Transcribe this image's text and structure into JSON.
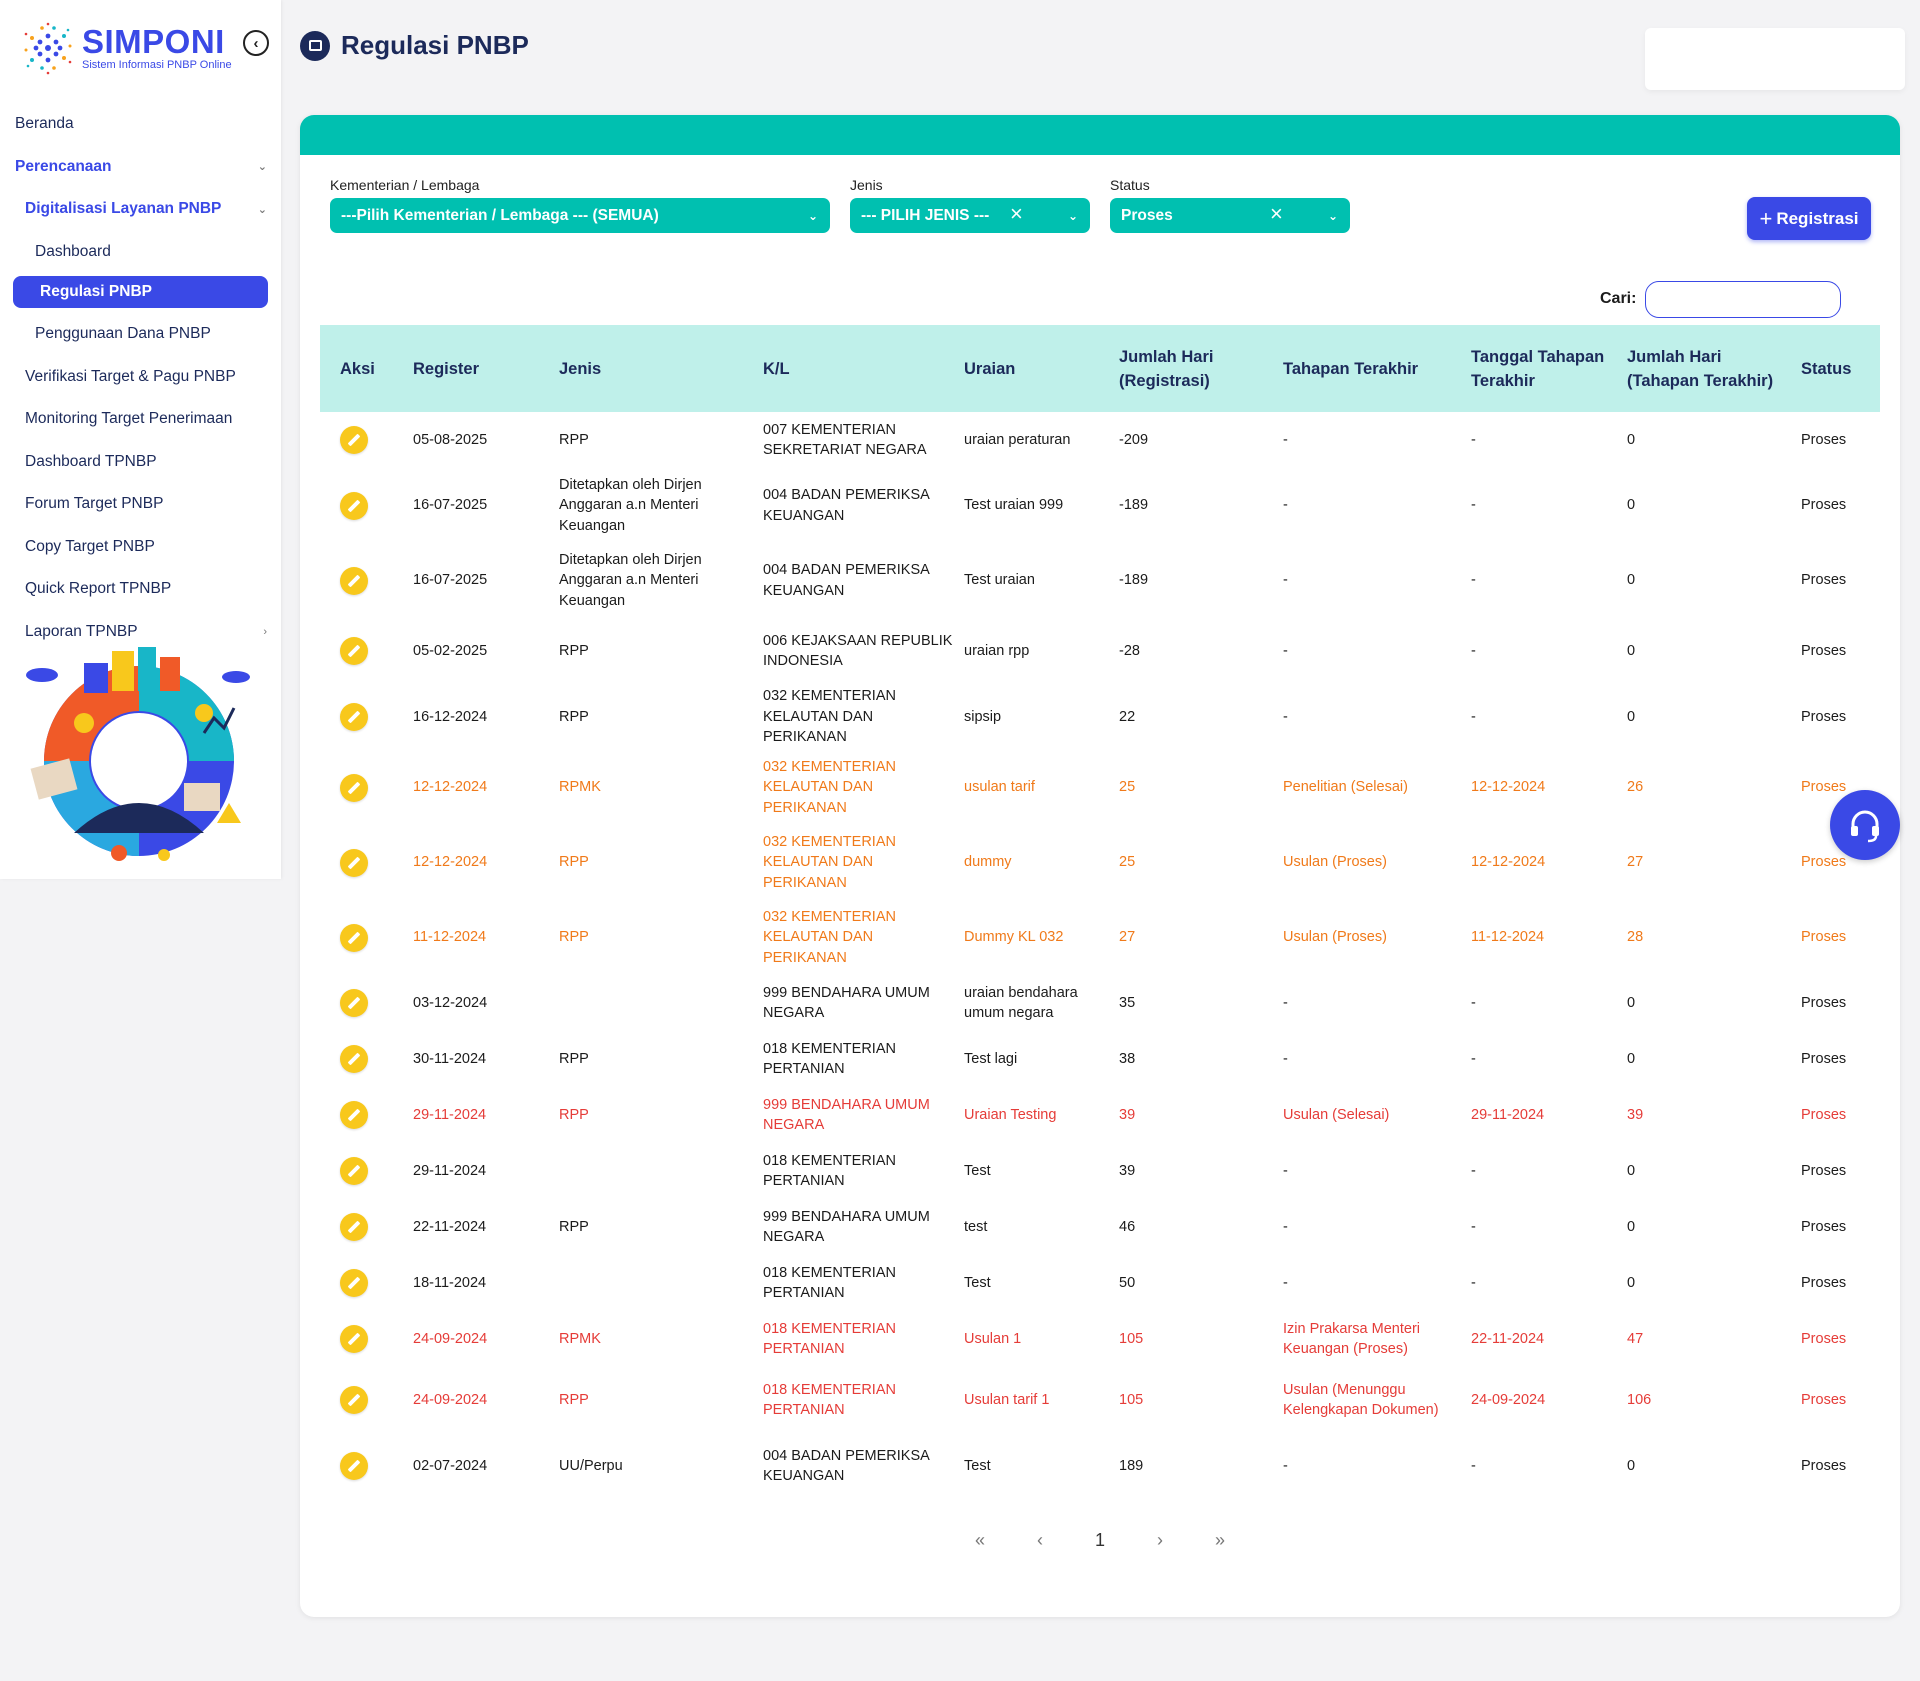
{
  "app": {
    "logo_title": "SIMPONI",
    "logo_subtitle": "Sistem Informasi PNBP Online"
  },
  "sidebar": {
    "items": [
      {
        "label": "Beranda"
      },
      {
        "label": "Perencanaan"
      },
      {
        "label": "Digitalisasi Layanan PNBP"
      },
      {
        "label": "Dashboard"
      },
      {
        "label": "Regulasi PNBP"
      },
      {
        "label": "Penggunaan Dana PNBP"
      },
      {
        "label": "Verifikasi Target & Pagu PNBP"
      },
      {
        "label": "Monitoring Target Penerimaan"
      },
      {
        "label": "Dashboard TPNBP"
      },
      {
        "label": "Forum Target PNBP"
      },
      {
        "label": "Copy Target PNBP"
      },
      {
        "label": "Quick Report TPNBP"
      },
      {
        "label": "Laporan TPNBP"
      }
    ]
  },
  "page": {
    "title": "Regulasi PNBP"
  },
  "filters": {
    "kl_label": "Kementerian / Lembaga",
    "kl_value": "---Pilih Kementerian / Lembaga --- (SEMUA)",
    "jenis_label": "Jenis",
    "jenis_value": "--- PILIH JENIS ---",
    "status_label": "Status",
    "status_value": "Proses",
    "register_button": "Registrasi"
  },
  "search": {
    "label": "Cari:",
    "value": ""
  },
  "table": {
    "headers": [
      "Aksi",
      "Register",
      "Jenis",
      "K/L",
      "Uraian",
      "Jumlah Hari (Registrasi)",
      "Tahapan Terakhir",
      "Tanggal Tahapan Terakhir",
      "Jumlah Hari (Tahapan Terakhir)",
      "Status"
    ],
    "rows": [
      {
        "register": "05-08-2025",
        "jenis": "RPP",
        "kl": "007 KEMENTERIAN SEKRETARIAT NEGARA",
        "uraian": "uraian peraturan",
        "hari_reg": "-209",
        "tahapan": "-",
        "tgl_tahapan": "-",
        "hari_tahapan": "0",
        "status": "Proses"
      },
      {
        "register": "16-07-2025",
        "jenis": "Ditetapkan oleh Dirjen Anggaran a.n Menteri Keuangan",
        "kl": "004 BADAN PEMERIKSA KEUANGAN",
        "uraian": "Test uraian 999",
        "hari_reg": "-189",
        "tahapan": "-",
        "tgl_tahapan": "-",
        "hari_tahapan": "0",
        "status": "Proses"
      },
      {
        "register": "16-07-2025",
        "jenis": "Ditetapkan oleh Dirjen Anggaran a.n Menteri Keuangan",
        "kl": "004 BADAN PEMERIKSA KEUANGAN",
        "uraian": "Test uraian",
        "hari_reg": "-189",
        "tahapan": "-",
        "tgl_tahapan": "-",
        "hari_tahapan": "0",
        "status": "Proses"
      },
      {
        "register": "05-02-2025",
        "jenis": "RPP",
        "kl": "006 KEJAKSAAN REPUBLIK INDONESIA",
        "uraian": "uraian rpp",
        "hari_reg": "-28",
        "tahapan": "-",
        "tgl_tahapan": "-",
        "hari_tahapan": "0",
        "status": "Proses"
      },
      {
        "register": "16-12-2024",
        "jenis": "RPP",
        "kl": "032 KEMENTERIAN KELAUTAN DAN PERIKANAN",
        "uraian": "sipsip",
        "hari_reg": "22",
        "tahapan": "-",
        "tgl_tahapan": "-",
        "hari_tahapan": "0",
        "status": "Proses"
      },
      {
        "register": "12-12-2024",
        "jenis": "RPMK",
        "kl": "032 KEMENTERIAN KELAUTAN DAN PERIKANAN",
        "uraian": "usulan tarif",
        "hari_reg": "25",
        "tahapan": "Penelitian (Selesai)",
        "tgl_tahapan": "12-12-2024",
        "hari_tahapan": "26",
        "status": "Proses",
        "color": "orange"
      },
      {
        "register": "12-12-2024",
        "jenis": "RPP",
        "kl": "032 KEMENTERIAN KELAUTAN DAN PERIKANAN",
        "uraian": "dummy",
        "hari_reg": "25",
        "tahapan": "Usulan (Proses)",
        "tgl_tahapan": "12-12-2024",
        "hari_tahapan": "27",
        "status": "Proses",
        "color": "orange"
      },
      {
        "register": "11-12-2024",
        "jenis": "RPP",
        "kl": "032 KEMENTERIAN KELAUTAN DAN PERIKANAN",
        "uraian": "Dummy KL 032",
        "hari_reg": "27",
        "tahapan": "Usulan (Proses)",
        "tgl_tahapan": "11-12-2024",
        "hari_tahapan": "28",
        "status": "Proses",
        "color": "orange"
      },
      {
        "register": "03-12-2024",
        "jenis": "",
        "kl": "999 BENDAHARA UMUM NEGARA",
        "uraian": "uraian bendahara umum negara",
        "hari_reg": "35",
        "tahapan": "-",
        "tgl_tahapan": "-",
        "hari_tahapan": "0",
        "status": "Proses"
      },
      {
        "register": "30-11-2024",
        "jenis": "RPP",
        "kl": "018 KEMENTERIAN PERTANIAN",
        "uraian": "Test lagi",
        "hari_reg": "38",
        "tahapan": "-",
        "tgl_tahapan": "-",
        "hari_tahapan": "0",
        "status": "Proses"
      },
      {
        "register": "29-11-2024",
        "jenis": "RPP",
        "kl": "999 BENDAHARA UMUM NEGARA",
        "uraian": "Uraian Testing",
        "hari_reg": "39",
        "tahapan": "Usulan (Selesai)",
        "tgl_tahapan": "29-11-2024",
        "hari_tahapan": "39",
        "status": "Proses",
        "color": "red"
      },
      {
        "register": "29-11-2024",
        "jenis": "",
        "kl": "018 KEMENTERIAN PERTANIAN",
        "uraian": "Test",
        "hari_reg": "39",
        "tahapan": "-",
        "tgl_tahapan": "-",
        "hari_tahapan": "0",
        "status": "Proses"
      },
      {
        "register": "22-11-2024",
        "jenis": "RPP",
        "kl": "999 BENDAHARA UMUM NEGARA",
        "uraian": "test",
        "hari_reg": "46",
        "tahapan": "-",
        "tgl_tahapan": "-",
        "hari_tahapan": "0",
        "status": "Proses"
      },
      {
        "register": "18-11-2024",
        "jenis": "",
        "kl": "018 KEMENTERIAN PERTANIAN",
        "uraian": "Test",
        "hari_reg": "50",
        "tahapan": "-",
        "tgl_tahapan": "-",
        "hari_tahapan": "0",
        "status": "Proses"
      },
      {
        "register": "24-09-2024",
        "jenis": "RPMK",
        "kl": "018 KEMENTERIAN PERTANIAN",
        "uraian": "Usulan 1",
        "hari_reg": "105",
        "tahapan": "Izin Prakarsa Menteri Keuangan (Proses)",
        "tgl_tahapan": "22-11-2024",
        "hari_tahapan": "47",
        "status": "Proses",
        "color": "red"
      },
      {
        "register": "24-09-2024",
        "jenis": "RPP",
        "kl": "018 KEMENTERIAN PERTANIAN",
        "uraian": "Usulan tarif 1",
        "hari_reg": "105",
        "tahapan": "Usulan (Menunggu Kelengkapan Dokumen)",
        "tgl_tahapan": "24-09-2024",
        "hari_tahapan": "106",
        "status": "Proses",
        "color": "red"
      },
      {
        "register": "02-07-2024",
        "jenis": "UU/Perpu",
        "kl": "004 BADAN PEMERIKSA KEUANGAN",
        "uraian": "Test",
        "hari_reg": "189",
        "tahapan": "-",
        "tgl_tahapan": "-",
        "hari_tahapan": "0",
        "status": "Proses"
      }
    ]
  },
  "pagination": {
    "first": "«",
    "prev": "‹",
    "page": "1",
    "next": "›",
    "last": "»"
  },
  "colors": {
    "primary": "#3a49e6",
    "teal": "#00c0b0",
    "header_bg": "#bff0ea",
    "orange": "#f07a1a",
    "red": "#e53c38",
    "edit": "#f8c81c"
  },
  "icons": {
    "collapse": "chevron-left-circle-icon",
    "page": "list-icon",
    "edit": "pencil-icon",
    "help": "headset-icon"
  }
}
